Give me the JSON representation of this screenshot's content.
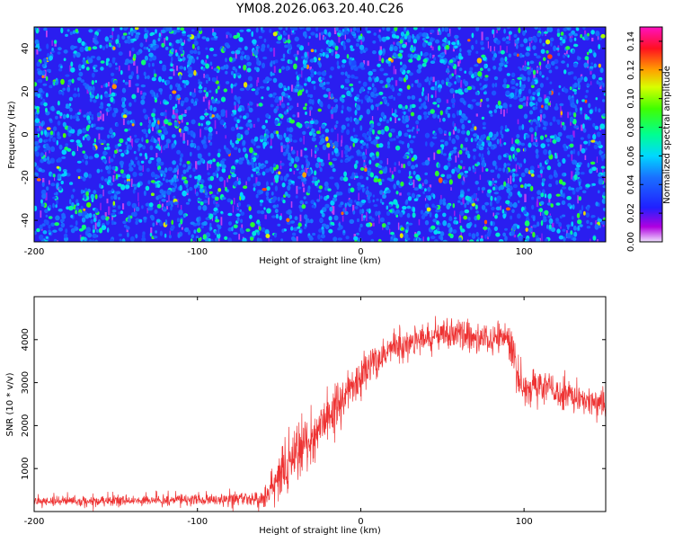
{
  "page_title": "YM08.2026.063.20.40.C26",
  "chart_data": [
    {
      "type": "heatmap",
      "title": "YM08.2026.063.20.40.C26",
      "xlabel": "Height of straight line (km)",
      "ylabel": "Frequency (Hz)",
      "xlim": [
        -200,
        150
      ],
      "ylim": [
        -50,
        50
      ],
      "xticks": [
        -200,
        -100,
        0,
        100
      ],
      "yticks": [
        -40,
        -20,
        0,
        20,
        40
      ],
      "colorbar": {
        "label": "Normalized spectral amplitude",
        "range": [
          0,
          0.15
        ],
        "ticks": [
          0,
          0.02,
          0.04,
          0.06,
          0.08,
          0.1,
          0.12,
          0.14
        ],
        "tick_labels": [
          "0.00",
          "0.02",
          "0.04",
          "0.06",
          "0.08",
          "0.10",
          "0.12",
          "0.14"
        ],
        "colormap": "rainbow (violet→blue→cyan→green→yellow→red→magenta)"
      },
      "description": "noise-like field, mostly 0.02–0.06 with sparse peaks near 0.12"
    },
    {
      "type": "line",
      "xlabel": "Height of straight line (km)",
      "ylabel": "SNR (10 * v/v)",
      "xlim": [
        -200,
        150
      ],
      "ylim": [
        0,
        5000
      ],
      "xticks": [
        -200,
        -100,
        0,
        100
      ],
      "yticks": [
        1000,
        2000,
        3000,
        4000
      ],
      "color": "#ee3333",
      "series": [
        {
          "name": "SNR",
          "envelope": {
            "x": [
              -200,
              -150,
              -100,
              -60,
              -50,
              -40,
              -30,
              -20,
              -10,
              0,
              10,
              20,
              30,
              40,
              50,
              60,
              70,
              80,
              90,
              95,
              100,
              110,
              120,
              130,
              140,
              150
            ],
            "mean": [
              250,
              250,
              280,
              300,
              700,
              1300,
              1700,
              2200,
              2700,
              3100,
              3500,
              3800,
              3950,
              4000,
              4150,
              4100,
              4050,
              4050,
              4050,
              3300,
              2900,
              2900,
              2800,
              2700,
              2600,
              2500
            ],
            "spread": [
              120,
              120,
              120,
              180,
              500,
              600,
              600,
              550,
              500,
              450,
              400,
              350,
              320,
              300,
              300,
              300,
              300,
              300,
              400,
              600,
              400,
              400,
              350,
              350,
              350,
              350
            ]
          }
        }
      ]
    }
  ]
}
